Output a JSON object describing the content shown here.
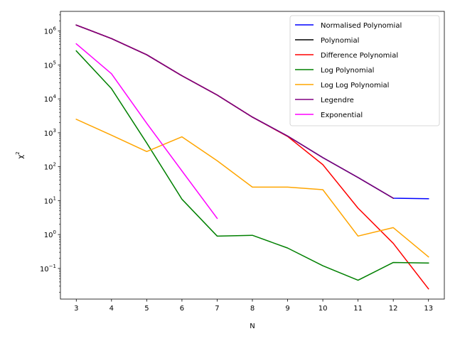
{
  "chart_data": {
    "type": "line",
    "xlabel": "N",
    "ylabel_base": "χ",
    "ylabel_sup": "2",
    "yscale": "log",
    "xlim": [
      2.55,
      13.45
    ],
    "ylim": [
      0.0125,
      3800000
    ],
    "x_ticks": [
      3,
      4,
      5,
      6,
      7,
      8,
      9,
      10,
      11,
      12,
      13
    ],
    "x_tick_labels": [
      "3",
      "4",
      "5",
      "6",
      "7",
      "8",
      "9",
      "10",
      "11",
      "12",
      "13"
    ],
    "y_ticks": [
      {
        "value": 0.1,
        "base": "10",
        "exp": "−1"
      },
      {
        "value": 1,
        "base": "10",
        "exp": "0"
      },
      {
        "value": 10,
        "base": "10",
        "exp": "1"
      },
      {
        "value": 100,
        "base": "10",
        "exp": "2"
      },
      {
        "value": 1000,
        "base": "10",
        "exp": "3"
      },
      {
        "value": 10000,
        "base": "10",
        "exp": "4"
      },
      {
        "value": 100000,
        "base": "10",
        "exp": "5"
      },
      {
        "value": 1000000,
        "base": "10",
        "exp": "6"
      }
    ],
    "grid": false,
    "legend_position": "top-right",
    "series": [
      {
        "name": "Normalised Polynomial",
        "color": "#0000ff",
        "x": [
          3,
          4,
          5,
          6,
          7,
          8,
          9,
          10,
          11,
          12,
          13
        ],
        "y": [
          1500000,
          600000,
          200000,
          48000,
          13000,
          2900,
          800,
          185,
          48,
          11.8,
          11.4
        ]
      },
      {
        "name": "Polynomial",
        "color": "#000000",
        "x": [
          3,
          4,
          5,
          6,
          7,
          8,
          9,
          10,
          11,
          12
        ],
        "y": [
          1500000,
          600000,
          200000,
          48000,
          13000,
          2900,
          800,
          185,
          48,
          11.8
        ]
      },
      {
        "name": "Difference Polynomial",
        "color": "#ff0000",
        "x": [
          3,
          4,
          5,
          6,
          7,
          8,
          9,
          10,
          11,
          12,
          13
        ],
        "y": [
          1500000,
          600000,
          200000,
          48000,
          13000,
          2900,
          780,
          115,
          6,
          0.55,
          0.025
        ]
      },
      {
        "name": "Log Polynomial",
        "color": "#008000",
        "x": [
          3,
          4,
          5,
          6,
          7,
          8,
          9,
          10,
          11,
          12,
          13
        ],
        "y": [
          260000,
          20000,
          500,
          11,
          0.9,
          0.95,
          0.4,
          0.12,
          0.045,
          0.15,
          0.145
        ]
      },
      {
        "name": "Log Log Polynomial",
        "color": "#ffa500",
        "x": [
          3,
          4,
          5,
          6,
          7,
          8,
          9,
          10,
          11,
          12,
          13
        ],
        "y": [
          2500,
          850,
          280,
          760,
          150,
          25,
          25,
          21,
          0.9,
          1.6,
          0.22
        ]
      },
      {
        "name": "Legendre",
        "color": "#800080",
        "x": [
          3,
          4,
          5,
          6,
          7,
          8,
          9,
          10,
          11,
          12
        ],
        "y": [
          1500000,
          600000,
          200000,
          48000,
          13000,
          2900,
          800,
          185,
          48,
          11.8
        ]
      },
      {
        "name": "Exponential",
        "color": "#ff00ff",
        "x": [
          3,
          4,
          5,
          6,
          7
        ],
        "y": [
          420000,
          55000,
          1900,
          75,
          3
        ]
      }
    ]
  }
}
